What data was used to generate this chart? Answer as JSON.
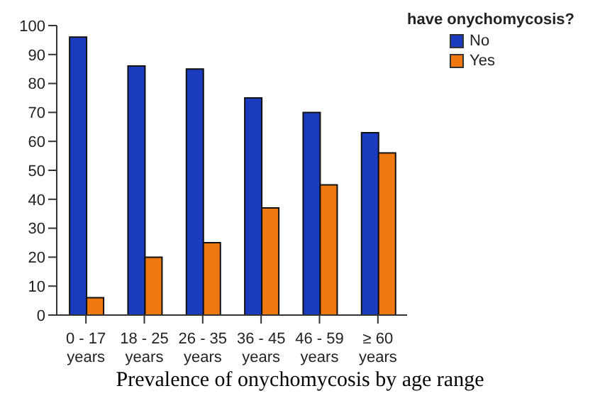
{
  "chart_data": {
    "type": "bar",
    "legend_title": "have onychomycosis?",
    "annotations": [
      "Prevalence of onychomycosis by age range"
    ],
    "categories": [
      "0 - 17 years",
      "18 - 25 years",
      "26 - 35 years",
      "36 - 45 years",
      "46 - 59 years",
      "≥ 60 years"
    ],
    "series": [
      {
        "name": "No",
        "color": "#1c3cc0",
        "values": [
          96,
          86,
          85,
          75,
          70,
          63
        ]
      },
      {
        "name": "Yes",
        "color": "#f07810",
        "values": [
          6,
          20,
          25,
          37,
          45,
          56
        ]
      }
    ],
    "ylim": [
      0,
      100
    ],
    "yticks": [
      0,
      10,
      20,
      30,
      40,
      50,
      60,
      70,
      80,
      90,
      100
    ],
    "grid": false,
    "legend": "top right"
  }
}
